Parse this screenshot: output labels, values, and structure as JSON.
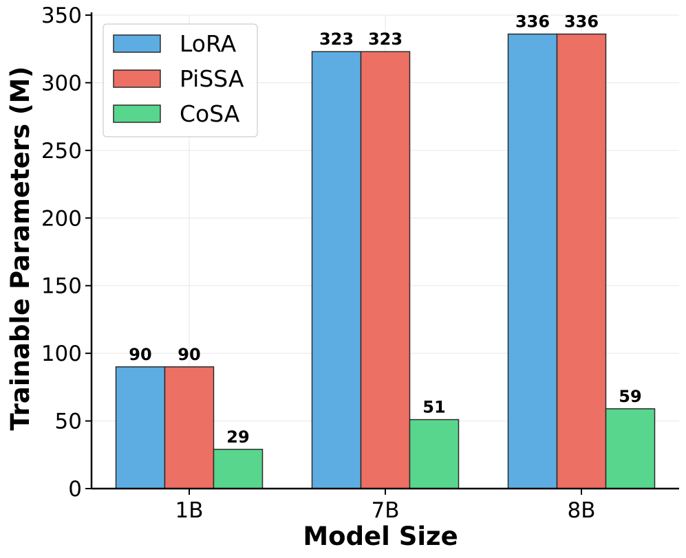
{
  "chart_data": {
    "type": "bar",
    "title": "",
    "xlabel": "Model Size",
    "ylabel": "Trainable Parameters (M)",
    "categories": [
      "1B",
      "7B",
      "8B"
    ],
    "series": [
      {
        "name": "LoRA",
        "color": "#5DADE2",
        "values": [
          90,
          323,
          336
        ]
      },
      {
        "name": "PiSSA",
        "color": "#EC7063",
        "values": [
          90,
          323,
          336
        ]
      },
      {
        "name": "CoSA",
        "color": "#58D68D",
        "values": [
          29,
          51,
          59
        ]
      }
    ],
    "ylim": [
      0,
      350
    ],
    "yticks": [
      0,
      50,
      100,
      150,
      200,
      250,
      300,
      350
    ],
    "grid": true,
    "legend_position": "top-left"
  }
}
